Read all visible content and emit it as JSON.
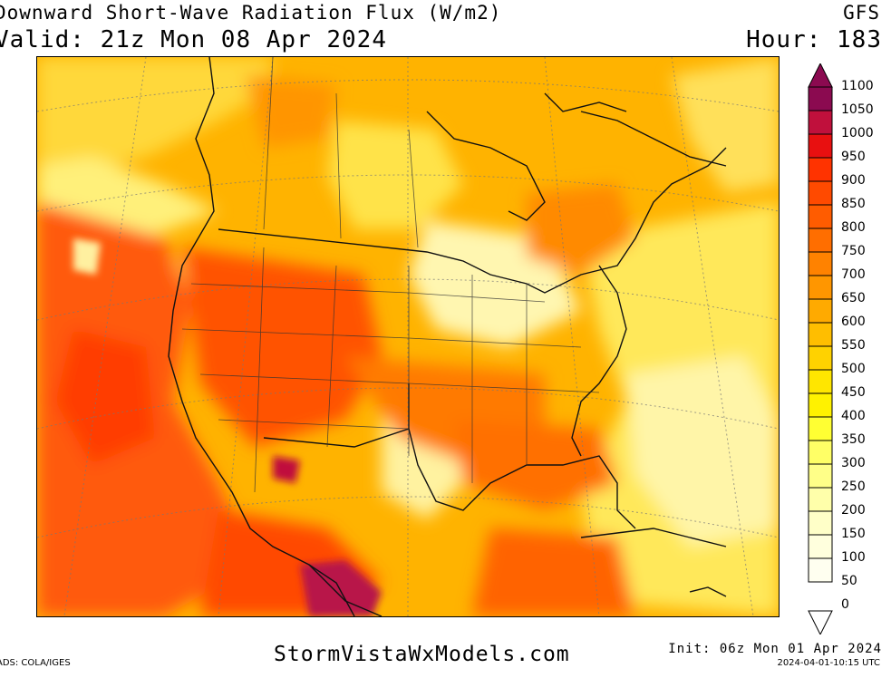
{
  "header": {
    "title": "Downward Short-Wave Radiation Flux (W/m2)",
    "valid": "Valid: 21z Mon 08 Apr 2024",
    "model": "GFS",
    "hour": "Hour: 183"
  },
  "colorbar": {
    "labels": [
      "1100",
      "1050",
      "1000",
      "950",
      "900",
      "850",
      "800",
      "750",
      "700",
      "650",
      "600",
      "550",
      "500",
      "450",
      "400",
      "350",
      "300",
      "250",
      "200",
      "150",
      "100",
      "50",
      "0"
    ],
    "colors": [
      "#8b0a50",
      "#c0103c",
      "#e81010",
      "#ff3300",
      "#ff4a00",
      "#ff5c00",
      "#ff6e00",
      "#ff8200",
      "#ff9600",
      "#ffaa00",
      "#ffbe00",
      "#ffd200",
      "#ffe600",
      "#fff200",
      "#ffff33",
      "#ffff66",
      "#ffff88",
      "#ffffaa",
      "#ffffc8",
      "#ffffdd",
      "#fffff0"
    ]
  },
  "footer": {
    "left": "ADS: COLA/IGES",
    "site": "StormVistaWxModels.com",
    "init": "Init: 06z Mon 01 Apr 2024",
    "timestamp": "2024-04-01-10:15 UTC"
  },
  "colors": {
    "base": "#ffb300",
    "hot": "#ff4500",
    "extreme": "#b0104a",
    "light": "#ffe94d",
    "pale": "#fff7b0"
  }
}
